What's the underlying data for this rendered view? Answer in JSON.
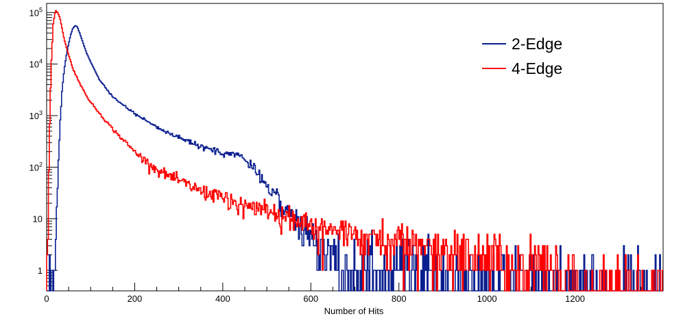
{
  "chart_data": {
    "type": "line",
    "style": "step-histogram",
    "xlabel": "Number of Hits",
    "ylabel": "",
    "xlim": [
      0,
      1400
    ],
    "ylim": [
      0.4,
      150000
    ],
    "yscale": "log",
    "x_ticks": [
      "0",
      "200",
      "400",
      "600",
      "800",
      "1000",
      "1200"
    ],
    "y_ticks": [
      {
        "mantissa": "1",
        "exponent": ""
      },
      {
        "mantissa": "10",
        "exponent": ""
      },
      {
        "mantissa": "10",
        "exponent": "2"
      },
      {
        "mantissa": "10",
        "exponent": "3"
      },
      {
        "mantissa": "10",
        "exponent": "4"
      },
      {
        "mantissa": "10",
        "exponent": "5"
      }
    ],
    "legend_position": "top-right",
    "series": [
      {
        "name": "2-Edge",
        "color": "#0a1f8f",
        "x": [
          15,
          20,
          25,
          30,
          35,
          40,
          45,
          50,
          55,
          60,
          65,
          70,
          75,
          80,
          90,
          100,
          120,
          150,
          200,
          250,
          300,
          350,
          400,
          430,
          450,
          480,
          500,
          520,
          550,
          580,
          600,
          620,
          650,
          700,
          800,
          900,
          1000,
          1100,
          1200,
          1300,
          1395
        ],
        "values": [
          0.4,
          2,
          50,
          600,
          3000,
          8000,
          15000,
          25000,
          38000,
          50000,
          56000,
          52000,
          40000,
          30000,
          17000,
          11000,
          5000,
          2300,
          1100,
          600,
          370,
          250,
          190,
          180,
          140,
          80,
          45,
          28,
          14,
          7,
          4.5,
          3,
          2,
          1.3,
          1,
          0.8,
          0.6,
          0.5,
          0.45,
          0.42,
          0.4
        ]
      },
      {
        "name": "4-Edge",
        "color": "#ff0000",
        "x": [
          0,
          3,
          6,
          10,
          15,
          20,
          25,
          30,
          35,
          40,
          50,
          60,
          80,
          100,
          150,
          200,
          250,
          300,
          350,
          400,
          450,
          500,
          600,
          700,
          800,
          900,
          1000,
          1100,
          1150,
          1200,
          1300,
          1395
        ],
        "values": [
          0.5,
          5,
          300,
          8000,
          60000,
          110000,
          100000,
          80000,
          50000,
          30000,
          15000,
          8000,
          3500,
          1800,
          550,
          200,
          90,
          55,
          35,
          25,
          18,
          15,
          8,
          5,
          3.5,
          2.5,
          2,
          1.5,
          1,
          0.4,
          0.4,
          0.4
        ]
      }
    ]
  }
}
